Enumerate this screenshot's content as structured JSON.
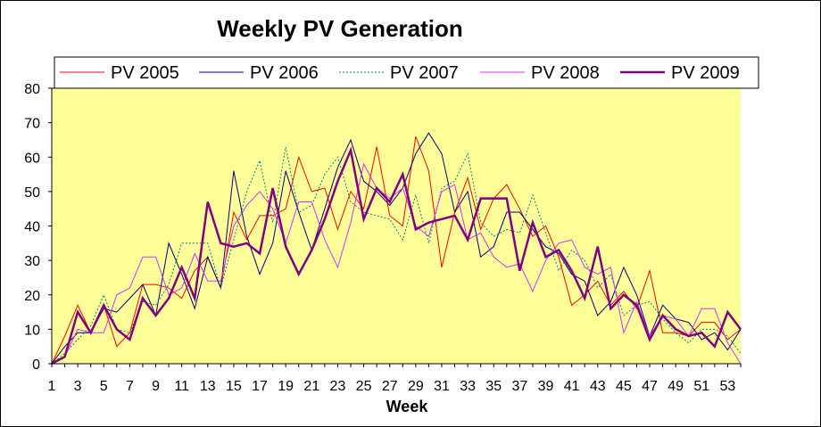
{
  "chart_data": {
    "type": "line",
    "title": "Weekly PV Generation",
    "xlabel": "Week",
    "ylabel": "",
    "xlim": [
      1,
      54
    ],
    "ylim": [
      0,
      80
    ],
    "y_ticks": [
      "0",
      "10",
      "20",
      "30",
      "40",
      "50",
      "60",
      "70",
      "80"
    ],
    "x_ticks": [
      "1",
      "3",
      "5",
      "7",
      "9",
      "11",
      "13",
      "15",
      "17",
      "19",
      "21",
      "23",
      "25",
      "27",
      "29",
      "31",
      "33",
      "35",
      "37",
      "39",
      "41",
      "43",
      "45",
      "47",
      "49",
      "51",
      "53"
    ],
    "plot_background": "#ffff99",
    "legend_position": "top",
    "series": [
      {
        "name": "PV 2005",
        "color": "#ff0000",
        "style": "solid",
        "values": [
          0,
          8,
          17,
          9,
          17,
          5,
          9,
          23,
          23,
          22,
          19,
          27,
          31,
          22,
          44,
          36,
          43,
          43,
          45,
          60,
          50,
          51,
          39,
          50,
          45,
          63,
          43,
          40,
          66,
          56,
          28,
          44,
          54,
          39,
          48,
          52,
          45,
          37,
          40,
          31,
          17,
          20,
          24,
          17,
          21,
          16,
          27,
          9,
          9,
          8,
          12,
          12,
          7,
          10
        ]
      },
      {
        "name": "PV 2006",
        "color": "#000080",
        "style": "solid",
        "values": [
          0,
          5,
          9,
          9,
          16,
          15,
          19,
          23,
          14,
          35,
          26,
          16,
          31,
          22,
          56,
          37,
          26,
          35,
          56,
          44,
          33,
          45,
          57,
          65,
          53,
          50,
          46,
          51,
          61,
          67,
          61,
          44,
          50,
          31,
          34,
          44,
          44,
          39,
          34,
          32,
          26,
          24,
          14,
          18,
          28,
          20,
          8,
          17,
          13,
          12,
          7,
          9,
          4,
          10
        ]
      },
      {
        "name": "PV 2007",
        "color": "#008080",
        "style": "dotted",
        "values": [
          0,
          3,
          7,
          11,
          20,
          10,
          9,
          18,
          17,
          23,
          35,
          35,
          35,
          22,
          36,
          50,
          59,
          41,
          63,
          44,
          46,
          55,
          60,
          47,
          44,
          43,
          42,
          36,
          49,
          35,
          51,
          53,
          61,
          41,
          37,
          39,
          38,
          49,
          38,
          27,
          33,
          30,
          22,
          26,
          14,
          17,
          18,
          13,
          9,
          6,
          10,
          10,
          8,
          3
        ]
      },
      {
        "name": "PV 2008",
        "color": "#cc33ff",
        "style": "solid",
        "values": [
          0,
          2,
          10,
          9,
          9,
          20,
          22,
          31,
          31,
          20,
          22,
          32,
          24,
          24,
          40,
          46,
          50,
          45,
          35,
          47,
          47,
          36,
          28,
          41,
          58,
          51,
          48,
          51,
          40,
          37,
          50,
          52,
          36,
          38,
          31,
          28,
          29,
          21,
          30,
          35,
          36,
          28,
          26,
          28,
          9,
          18,
          8,
          14,
          13,
          8,
          16,
          16,
          6,
          0
        ]
      },
      {
        "name": "PV 2009",
        "color": "#800080",
        "style": "bold",
        "values": [
          0,
          2,
          15,
          9,
          17,
          10,
          7,
          19,
          14,
          19,
          28,
          19,
          47,
          35,
          34,
          35,
          32,
          51,
          34,
          26,
          33,
          42,
          53,
          62,
          42,
          51,
          47,
          55,
          39,
          41,
          42,
          43,
          36,
          48,
          48,
          48,
          27,
          41,
          31,
          33,
          27,
          19,
          34,
          16,
          20,
          17,
          7,
          14,
          10,
          8,
          9,
          5,
          15,
          10
        ]
      }
    ]
  }
}
